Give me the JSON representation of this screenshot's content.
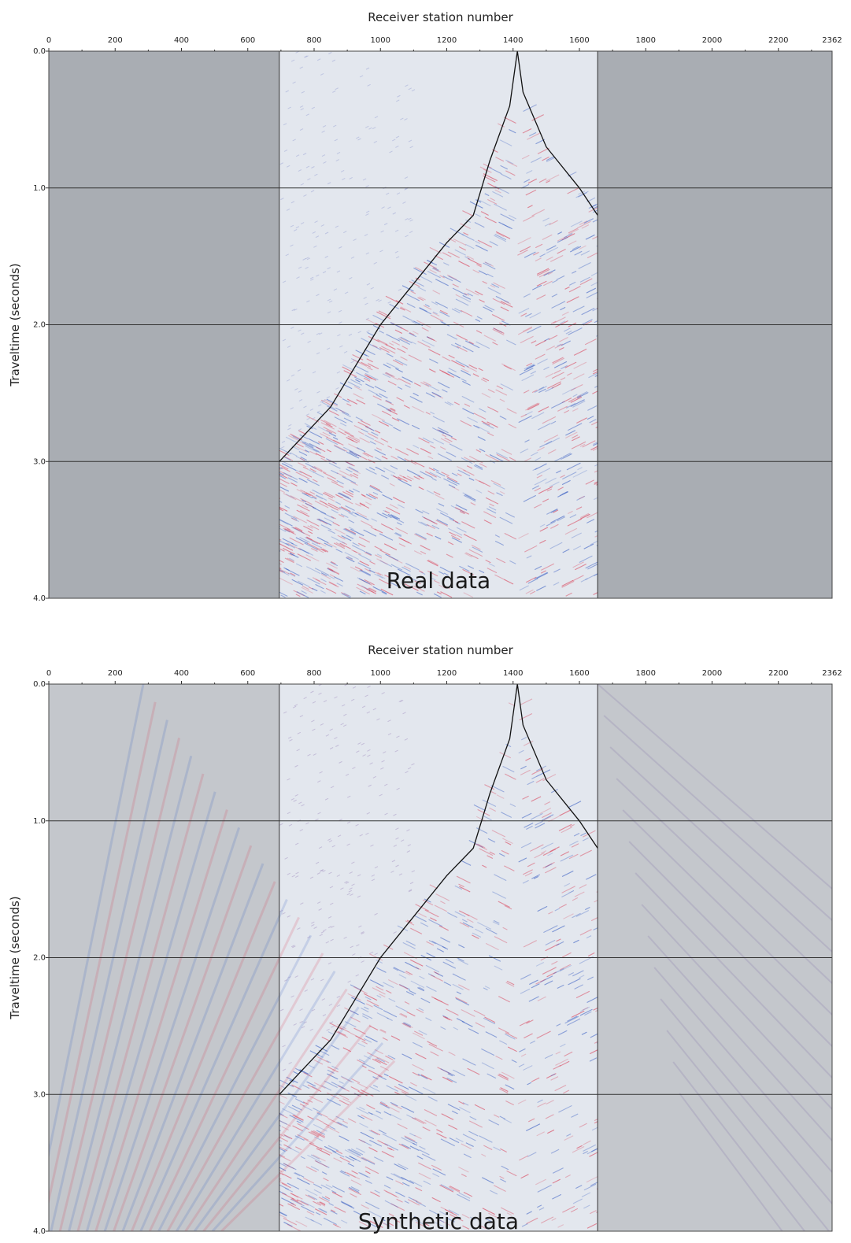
{
  "colors": {
    "muted_region": "#a9adb3",
    "active_region": "#e3e7ee",
    "positive_wiggle": "#d9435a",
    "negative_wiggle": "#3f63c4",
    "first_break": "#111111",
    "gridline": "#333333"
  },
  "chart_data": [
    {
      "type": "heatmap",
      "xlabel": "Receiver station number",
      "ylabel": "Traveltime (seconds)",
      "annotation": "Real data",
      "xlim": [
        0,
        2362
      ],
      "ylim": [
        4.0,
        0.0
      ],
      "x_ticks": [
        0,
        200,
        400,
        600,
        800,
        1000,
        1200,
        1400,
        1600,
        1800,
        2000,
        2200
      ],
      "x_tick_labels": [
        "0",
        "200",
        "400",
        "600",
        "800",
        "1000",
        "1200",
        "1400",
        "1600",
        "1800",
        "2000",
        "2200"
      ],
      "x_end_label": "2362",
      "y_ticks": [
        0.0,
        1.0,
        2.0,
        3.0,
        4.0
      ],
      "y_tick_labels": [
        "0.0",
        "1.0",
        "2.0",
        "3.0",
        "4.0"
      ],
      "grid_y": [
        1.0,
        2.0,
        3.0
      ],
      "active_window": [
        695,
        1655
      ],
      "source_station": 1413,
      "first_break_left": [
        [
          1413,
          0.0
        ],
        [
          1390,
          0.4
        ],
        [
          1330,
          0.8
        ],
        [
          1280,
          1.2
        ],
        [
          1200,
          1.4
        ],
        [
          1000,
          2.0
        ],
        [
          850,
          2.6
        ],
        [
          695,
          3.0
        ]
      ],
      "first_break_right": [
        [
          1413,
          0.0
        ],
        [
          1430,
          0.3
        ],
        [
          1500,
          0.7
        ],
        [
          1600,
          1.0
        ],
        [
          1655,
          1.2
        ]
      ]
    },
    {
      "type": "heatmap",
      "xlabel": "Receiver station number",
      "ylabel": "Traveltime (seconds)",
      "annotation": "Synthetic data",
      "xlim": [
        0,
        2362
      ],
      "ylim": [
        4.0,
        0.0
      ],
      "x_ticks": [
        0,
        200,
        400,
        600,
        800,
        1000,
        1200,
        1400,
        1600,
        1800,
        2000,
        2200
      ],
      "x_tick_labels": [
        "0",
        "200",
        "400",
        "600",
        "800",
        "1000",
        "1200",
        "1400",
        "1600",
        "1800",
        "2000",
        "2200"
      ],
      "x_end_label": "2362",
      "y_ticks": [
        0.0,
        1.0,
        2.0,
        3.0,
        4.0
      ],
      "y_tick_labels": [
        "0.0",
        "1.0",
        "2.0",
        "3.0",
        "4.0"
      ],
      "grid_y": [
        1.0,
        2.0,
        3.0
      ],
      "active_window": [
        695,
        1655
      ],
      "source_station": 1413,
      "first_break_left": [
        [
          1413,
          0.0
        ],
        [
          1390,
          0.4
        ],
        [
          1330,
          0.8
        ],
        [
          1280,
          1.2
        ],
        [
          1200,
          1.4
        ],
        [
          1000,
          2.0
        ],
        [
          850,
          2.6
        ],
        [
          695,
          3.0
        ]
      ],
      "first_break_right": [
        [
          1413,
          0.0
        ],
        [
          1430,
          0.3
        ],
        [
          1500,
          0.7
        ],
        [
          1600,
          1.0
        ],
        [
          1655,
          1.2
        ]
      ]
    }
  ]
}
